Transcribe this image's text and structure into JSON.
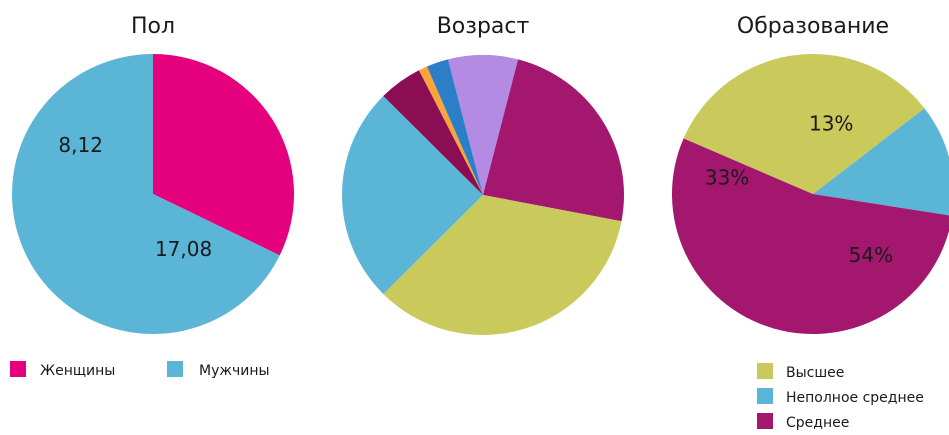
{
  "chart_data": [
    {
      "type": "pie",
      "title": "Пол",
      "slices": [
        {
          "label": "Женщины",
          "value": 8.12,
          "color": "#e5007e",
          "text": "8,12"
        },
        {
          "label": "Мужчины",
          "value": 17.08,
          "color": "#5bb5d6",
          "text": "17,08"
        }
      ],
      "legend": [
        {
          "label": "Женщины",
          "color": "#e5007e"
        },
        {
          "label": "Мужчины",
          "color": "#5bb5d6"
        }
      ],
      "legend_placement": "bottom"
    },
    {
      "type": "pie",
      "title": "Возраст",
      "slices": [
        {
          "value": 8.0,
          "color": "#b38be3"
        },
        {
          "value": 24.0,
          "color": "#a3176e"
        },
        {
          "value": 34.5,
          "color": "#c9ca5b"
        },
        {
          "value": 25.0,
          "color": "#5bb5d6"
        },
        {
          "value": 5.0,
          "color": "#8b0e55"
        },
        {
          "value": 1.0,
          "color": "#f7a43a"
        },
        {
          "value": 2.5,
          "color": "#2b7ec7"
        }
      ],
      "legend": []
    },
    {
      "type": "pie",
      "title": "Образование",
      "slices": [
        {
          "label": "Неполное среднее",
          "value": 13,
          "color": "#5bb5d6",
          "text": "13%"
        },
        {
          "label": "Среднее",
          "value": 54,
          "color": "#a3176e",
          "text": "54%"
        },
        {
          "label": "Высшее",
          "value": 33,
          "color": "#c9ca5b",
          "text": "33%"
        }
      ],
      "legend": [
        {
          "label": "Высшее",
          "color": "#c9ca5b"
        },
        {
          "label": "Неполное среднее",
          "color": "#5bb5d6"
        },
        {
          "label": "Среднее",
          "color": "#a3176e"
        }
      ],
      "legend_placement": "bottom-right"
    }
  ]
}
